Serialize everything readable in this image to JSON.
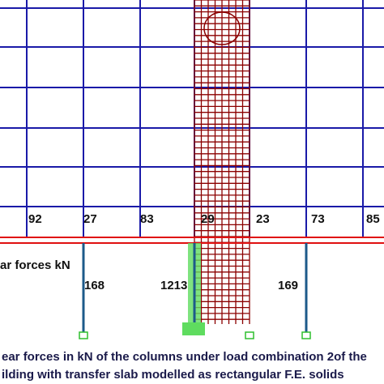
{
  "beam_forces": [
    "92",
    "27",
    "83",
    "29",
    "23",
    "73",
    "85"
  ],
  "legend": "ar forces kN",
  "column_forces": [
    "168",
    "1213",
    "169"
  ],
  "caption": [
    "ear forces in kN of the columns under load combination 2of the",
    "ilding with transfer slab modelled as rectangular F.E. solids"
  ]
}
